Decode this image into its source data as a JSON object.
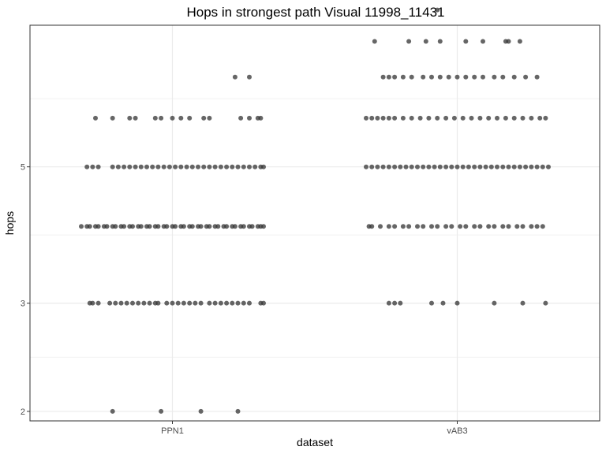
{
  "chart_data": {
    "type": "scatter",
    "title": "Hops in strongest path Visual 11998_11431",
    "xlabel": "dataset",
    "ylabel": "hops",
    "scale": "log",
    "categories": [
      "PPN1",
      "vAB3"
    ],
    "y_ticks": [
      2,
      3,
      5
    ],
    "ylim": [
      1.93,
      8.5
    ],
    "grid": true,
    "legend": "none",
    "point_color": "#333333",
    "series": [
      {
        "category": "PPN1",
        "points": [
          {
            "y": 2,
            "offsets": [
              -0.21,
              -0.04,
              0.1,
              0.23
            ]
          },
          {
            "y": 3,
            "offsets": [
              -0.29,
              -0.28,
              -0.26,
              -0.22,
              -0.2,
              -0.18,
              -0.16,
              -0.14,
              -0.12,
              -0.1,
              -0.08,
              -0.06,
              -0.05,
              -0.02,
              0.0,
              0.02,
              0.04,
              0.06,
              0.08,
              0.1,
              0.13,
              0.15,
              0.17,
              0.19,
              0.21,
              0.23,
              0.25,
              0.27,
              0.31,
              0.32
            ]
          },
          {
            "y": 4,
            "offsets": [
              -0.32,
              -0.3,
              -0.29,
              -0.27,
              -0.26,
              -0.24,
              -0.23,
              -0.21,
              -0.2,
              -0.18,
              -0.17,
              -0.15,
              -0.14,
              -0.12,
              -0.11,
              -0.09,
              -0.08,
              -0.06,
              -0.05,
              -0.03,
              -0.02,
              0.0,
              0.01,
              0.03,
              0.04,
              0.06,
              0.07,
              0.09,
              0.1,
              0.12,
              0.13,
              0.15,
              0.16,
              0.18,
              0.19,
              0.21,
              0.22,
              0.24,
              0.25,
              0.27,
              0.28,
              0.3,
              0.31,
              0.32
            ]
          },
          {
            "y": 5,
            "offsets": [
              -0.3,
              -0.28,
              -0.26,
              -0.21,
              -0.19,
              -0.17,
              -0.15,
              -0.13,
              -0.11,
              -0.09,
              -0.07,
              -0.05,
              -0.03,
              -0.01,
              0.01,
              0.03,
              0.05,
              0.07,
              0.09,
              0.11,
              0.13,
              0.15,
              0.17,
              0.19,
              0.21,
              0.23,
              0.25,
              0.27,
              0.29,
              0.31,
              0.32
            ]
          },
          {
            "y": 6,
            "offsets": [
              -0.27,
              -0.21,
              -0.15,
              -0.13,
              -0.06,
              -0.04,
              0.0,
              0.03,
              0.06,
              0.11,
              0.13,
              0.24,
              0.27,
              0.3,
              0.31
            ]
          },
          {
            "y": 7,
            "offsets": [
              0.22,
              0.27
            ]
          }
        ]
      },
      {
        "category": "vAB3",
        "points": [
          {
            "y": 3,
            "offsets": [
              -0.24,
              -0.22,
              -0.2,
              -0.09,
              -0.05,
              0.0,
              0.13,
              0.23,
              0.31
            ]
          },
          {
            "y": 4,
            "offsets": [
              -0.31,
              -0.3,
              -0.27,
              -0.24,
              -0.22,
              -0.19,
              -0.17,
              -0.14,
              -0.12,
              -0.09,
              -0.07,
              -0.04,
              -0.02,
              0.01,
              0.03,
              0.06,
              0.08,
              0.11,
              0.13,
              0.16,
              0.18,
              0.21,
              0.23,
              0.26,
              0.28,
              0.3
            ]
          },
          {
            "y": 5,
            "offsets": [
              -0.32,
              -0.3,
              -0.28,
              -0.26,
              -0.24,
              -0.22,
              -0.2,
              -0.18,
              -0.16,
              -0.14,
              -0.12,
              -0.1,
              -0.08,
              -0.06,
              -0.04,
              -0.02,
              0.0,
              0.02,
              0.04,
              0.06,
              0.08,
              0.1,
              0.12,
              0.14,
              0.16,
              0.18,
              0.2,
              0.22,
              0.24,
              0.26,
              0.28,
              0.3,
              0.32
            ]
          },
          {
            "y": 6,
            "offsets": [
              -0.32,
              -0.3,
              -0.28,
              -0.26,
              -0.24,
              -0.22,
              -0.19,
              -0.16,
              -0.13,
              -0.1,
              -0.07,
              -0.04,
              -0.01,
              0.02,
              0.05,
              0.08,
              0.11,
              0.14,
              0.17,
              0.2,
              0.23,
              0.26,
              0.29,
              0.31
            ]
          },
          {
            "y": 7,
            "offsets": [
              -0.26,
              -0.24,
              -0.22,
              -0.19,
              -0.16,
              -0.12,
              -0.09,
              -0.06,
              -0.03,
              0.0,
              0.03,
              0.06,
              0.09,
              0.13,
              0.16,
              0.2,
              0.24,
              0.28
            ]
          },
          {
            "y": 8,
            "offsets": [
              -0.29,
              -0.17,
              -0.11,
              -0.06,
              0.03,
              0.09,
              0.17,
              0.18,
              0.22
            ]
          },
          {
            "y": 9,
            "offsets": [
              -0.07
            ]
          }
        ]
      }
    ]
  }
}
